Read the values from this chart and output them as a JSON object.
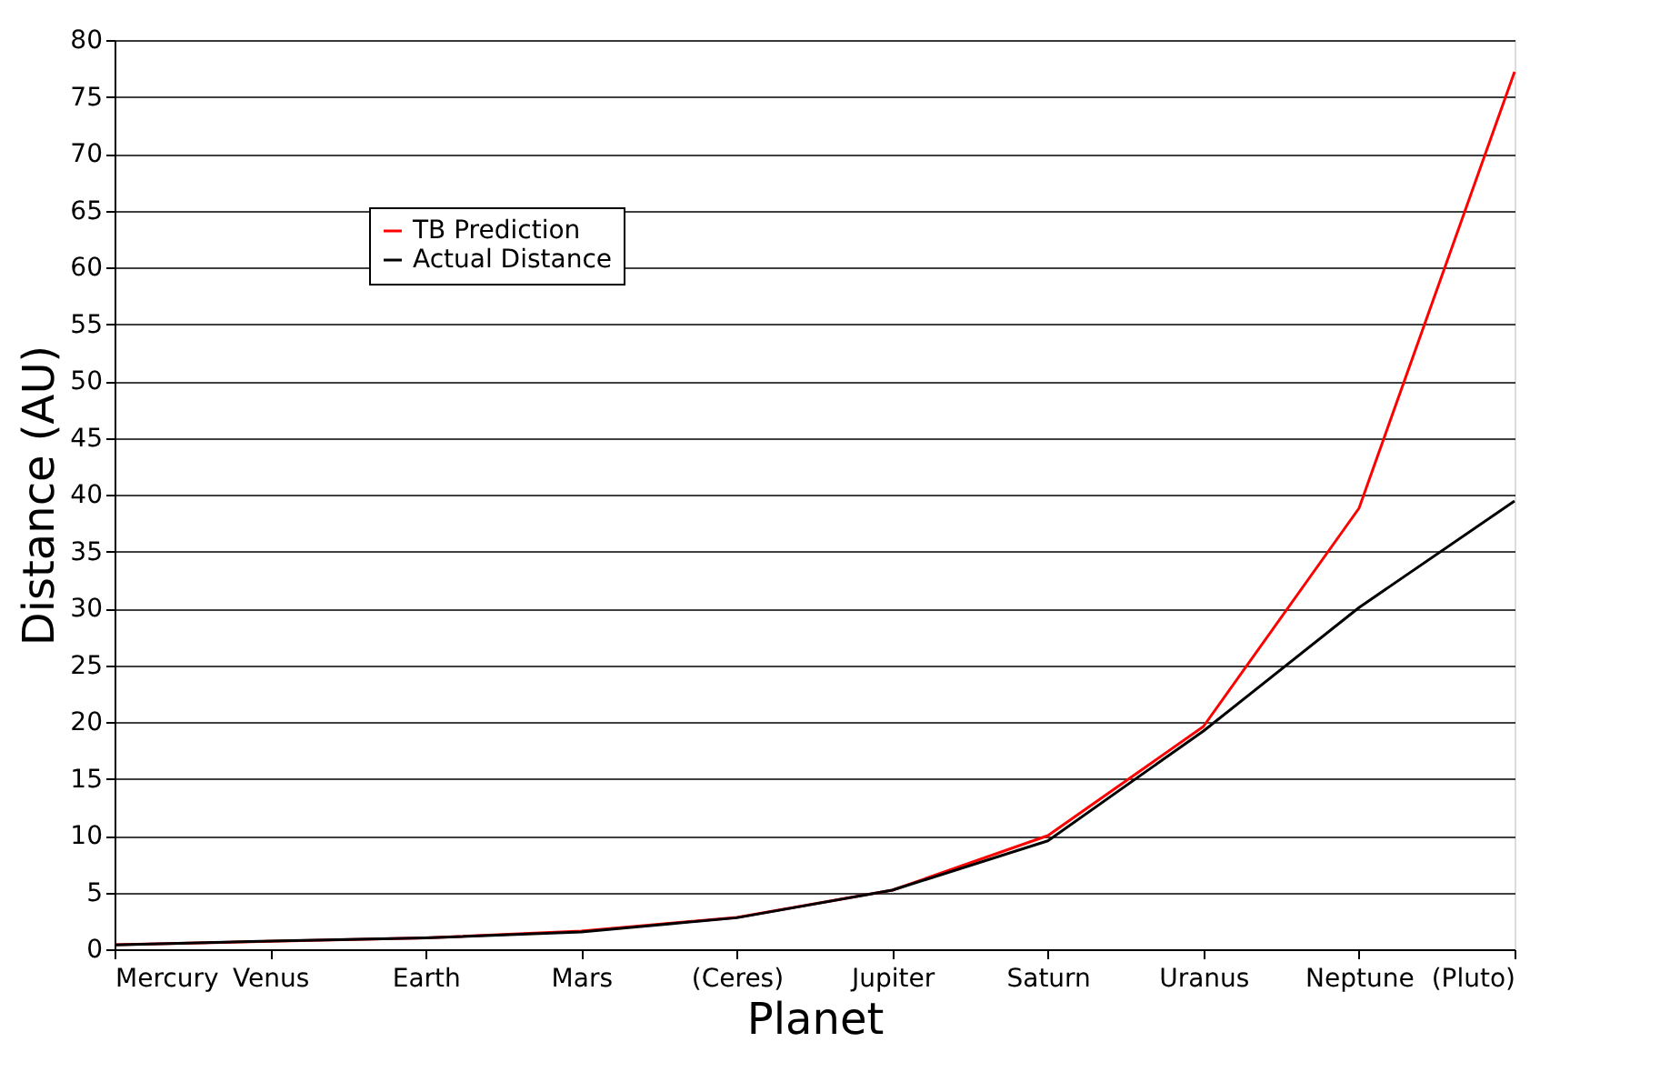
{
  "chart_data": {
    "type": "line",
    "xlabel": "Planet",
    "ylabel": "Distance (AU)",
    "categories": [
      "Mercury",
      "Venus",
      "Earth",
      "Mars",
      "(Ceres)",
      "Jupiter",
      "Saturn",
      "Uranus",
      "Neptune",
      "(Pluto)"
    ],
    "series": [
      {
        "name": "TB Prediction",
        "color": "#ff0000",
        "values": [
          0.4,
          0.7,
          1.0,
          1.6,
          2.8,
          5.2,
          10.0,
          19.6,
          38.8,
          77.2
        ]
      },
      {
        "name": "Actual Distance",
        "color": "#000000",
        "values": [
          0.39,
          0.72,
          1.0,
          1.52,
          2.77,
          5.2,
          9.54,
          19.2,
          30.06,
          39.44
        ]
      }
    ],
    "ylim": [
      0,
      80
    ],
    "yticks": [
      0,
      5,
      10,
      15,
      20,
      25,
      30,
      35,
      40,
      45,
      50,
      55,
      60,
      65,
      70,
      75,
      80
    ],
    "grid": "y",
    "legend": "top left",
    "marker": "none",
    "line_style": "solid"
  }
}
